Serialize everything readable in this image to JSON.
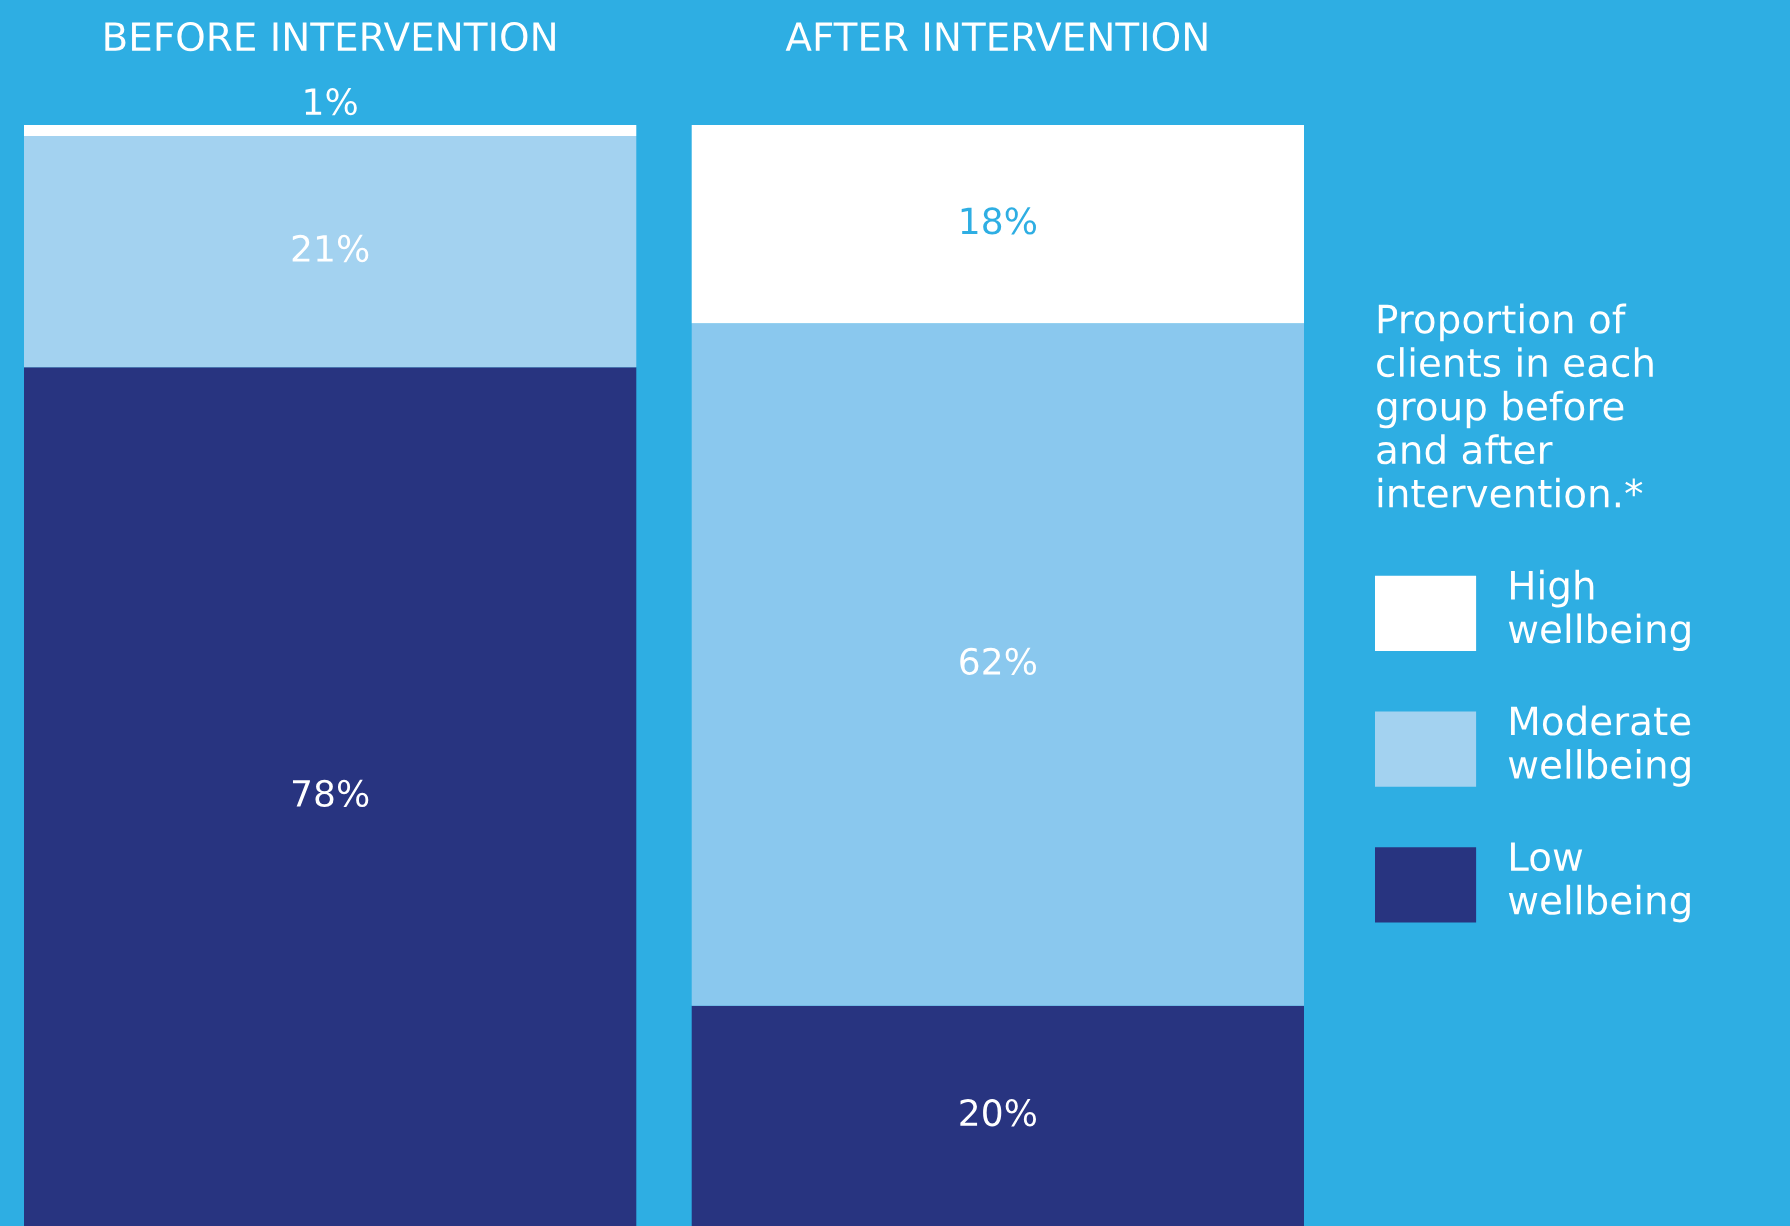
{
  "chart_data": {
    "type": "bar",
    "stacked": true,
    "categories": [
      "BEFORE INTERVENTION",
      "AFTER INTERVENTION"
    ],
    "series": [
      {
        "name": "Low wellbeing",
        "color": "#283480",
        "values": [
          78,
          20
        ],
        "value_labels": [
          "78%",
          "20%"
        ]
      },
      {
        "name": "Moderate wellbeing",
        "color": "#a3d2f0",
        "colors": [
          "#a3d2f0",
          "#8ac8ee"
        ],
        "values": [
          21,
          62
        ],
        "value_labels": [
          "21%",
          "62%"
        ]
      },
      {
        "name": "High wellbeing",
        "color": "#ffffff",
        "values": [
          1,
          18
        ],
        "value_labels": [
          "1%",
          "18%"
        ]
      }
    ],
    "legend": "right",
    "legend_title": "Proportion of clients in each group before and after intervention.*",
    "tick_labels": "x",
    "grid": false
  }
}
